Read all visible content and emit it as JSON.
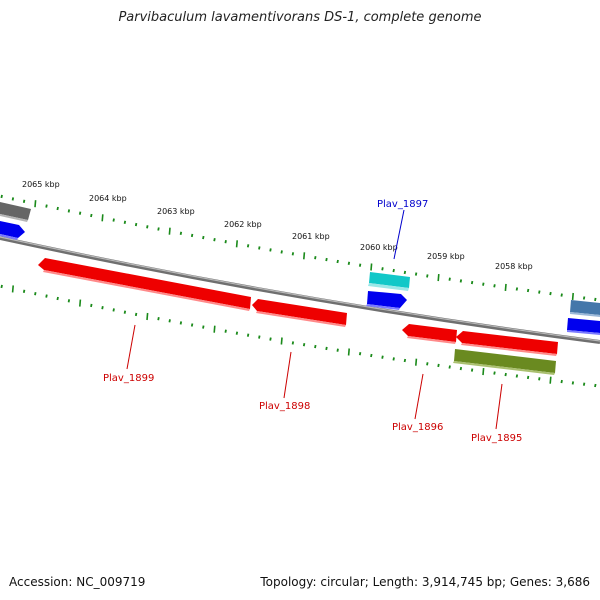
{
  "title": "Parvibaculum lavamentivorans DS-1, complete genome",
  "footer": {
    "accession": "Accession: NC_009719",
    "summary": "Topology: circular; Length: 3,914,745 bp; Genes: 3,686"
  },
  "scale_labels": [
    "2065 kbp",
    "2064 kbp",
    "2063 kbp",
    "2062 kbp",
    "2061 kbp",
    "2060 kbp",
    "2059 kbp",
    "2058 kbp"
  ],
  "gene_labels": [
    {
      "name": "Plav_1897",
      "color": "#0000cc"
    },
    {
      "name": "Plav_1899",
      "color": "#cc0000"
    },
    {
      "name": "Plav_1898",
      "color": "#cc0000"
    },
    {
      "name": "Plav_1896",
      "color": "#cc0000"
    },
    {
      "name": "Plav_1895",
      "color": "#cc0000"
    }
  ],
  "colors": {
    "backbone": "#8a8a8a",
    "tick": "#1a8a1a",
    "red_gene": "#ee0000",
    "blue_gene": "#0000ee",
    "cyan_gene": "#11c8c8",
    "olive_gene": "#6a8a20",
    "gray_gene": "#666666",
    "steel_gene": "#4477aa"
  }
}
